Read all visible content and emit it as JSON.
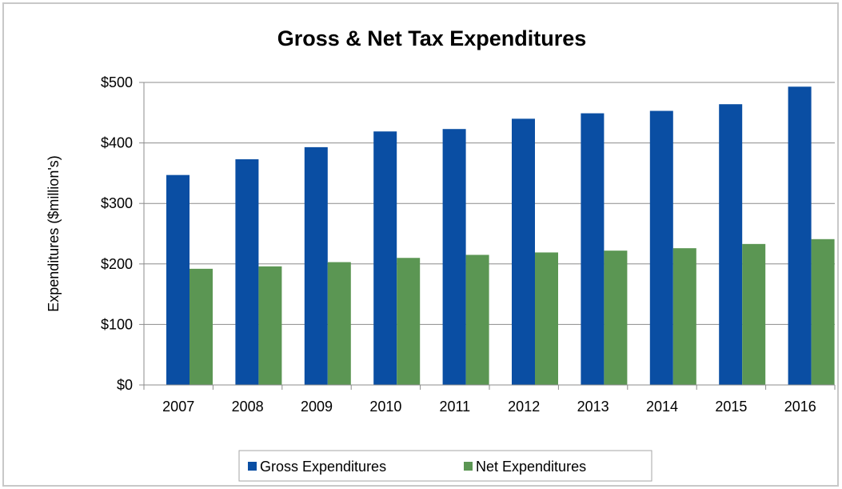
{
  "chart_data": {
    "type": "bar",
    "title": "Gross & Net Tax Expenditures",
    "xlabel": "",
    "ylabel": "Expenditures ($million's)",
    "categories": [
      "2007",
      "2008",
      "2009",
      "2010",
      "2011",
      "2012",
      "2013",
      "2014",
      "2015",
      "2016"
    ],
    "series": [
      {
        "name": "Gross Expenditures",
        "color": "#0a4ea3",
        "values": [
          347,
          373,
          393,
          419,
          423,
          440,
          449,
          453,
          464,
          493
        ]
      },
      {
        "name": "Net Expenditures",
        "color": "#5b9653",
        "values": [
          192,
          196,
          203,
          210,
          215,
          219,
          222,
          226,
          233,
          241
        ]
      }
    ],
    "ylim": [
      0,
      500
    ],
    "yticks": [
      0,
      100,
      200,
      300,
      400,
      500
    ],
    "ytick_labels": [
      "$0",
      "$100",
      "$200",
      "$300",
      "$400",
      "$500"
    ],
    "grid": true,
    "legend_position": "bottom"
  }
}
